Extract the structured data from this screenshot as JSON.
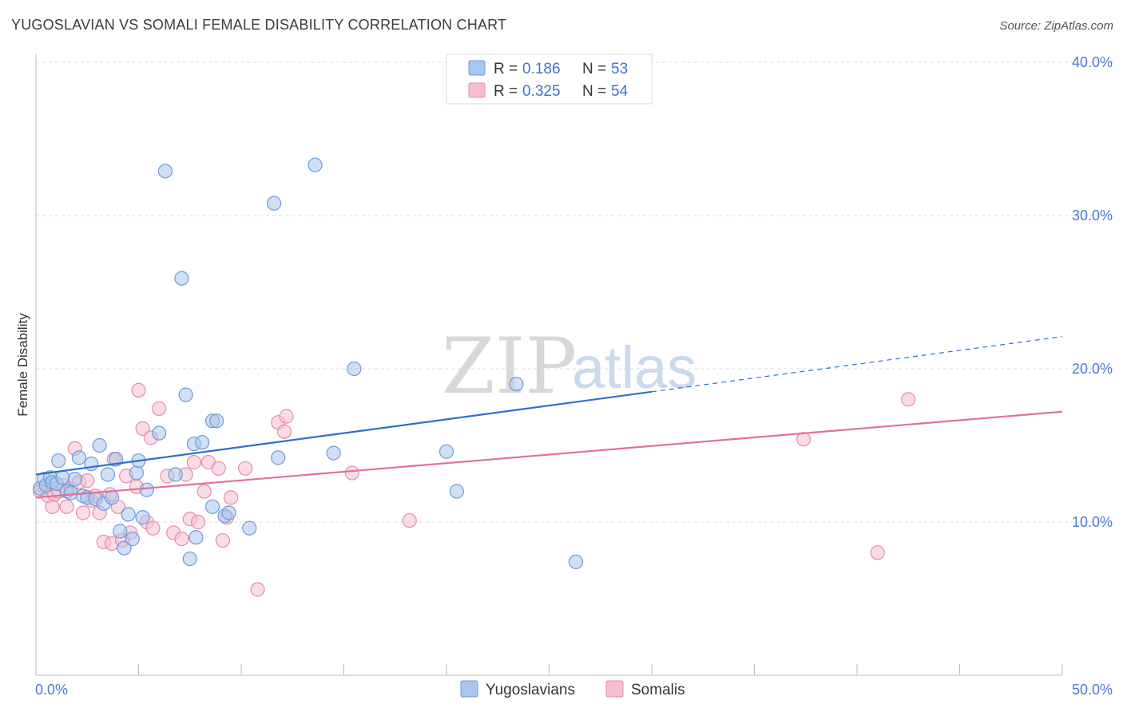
{
  "title": "YUGOSLAVIAN VS SOMALI FEMALE DISABILITY CORRELATION CHART",
  "source": "Source: ZipAtlas.com",
  "watermark": {
    "zip": "ZIP",
    "atlas": "atlas"
  },
  "legend": {
    "r_label": "R =",
    "n_label": "N =",
    "rows": [
      {
        "r": "0.186",
        "n": "53"
      },
      {
        "r": "0.325",
        "n": "54"
      }
    ]
  },
  "colors": {
    "yugo_fill": "#a9c6ef",
    "yugo_stroke": "#6f9bd8",
    "yugo_line": "#2f6fcf",
    "somali_fill": "#f6bfd0",
    "somali_stroke": "#e98aa8",
    "somali_line": "#e0709a"
  },
  "chart_data": {
    "type": "scatter",
    "title": "YUGOSLAVIAN VS SOMALI FEMALE DISABILITY CORRELATION CHART",
    "xlabel": "",
    "ylabel": "Female Disability",
    "xlim": [
      0,
      50
    ],
    "ylim": [
      0,
      41
    ],
    "x_tick_labels": [
      "0.0%",
      "50.0%"
    ],
    "y_ticks": [
      10,
      20,
      30,
      40
    ],
    "y_tick_labels": [
      "10.0%",
      "20.0%",
      "30.0%",
      "40.0%"
    ],
    "series": [
      {
        "name": "Yugoslavians",
        "r": 0.186,
        "n": 53,
        "trend": {
          "x0": 0,
          "y0": 13.1,
          "x1": 30,
          "y1": 18.5,
          "dashed_to_x": 50,
          "dashed_to_y": 22.1
        },
        "points": [
          [
            0.2,
            12.2
          ],
          [
            0.4,
            12.8
          ],
          [
            0.5,
            12.4
          ],
          [
            0.7,
            12.9
          ],
          [
            0.8,
            12.6
          ],
          [
            1.0,
            12.5
          ],
          [
            1.1,
            14.0
          ],
          [
            1.3,
            12.9
          ],
          [
            1.5,
            12.0
          ],
          [
            1.7,
            11.9
          ],
          [
            1.9,
            12.8
          ],
          [
            2.1,
            14.2
          ],
          [
            2.3,
            11.7
          ],
          [
            2.5,
            11.6
          ],
          [
            2.7,
            13.8
          ],
          [
            2.9,
            11.5
          ],
          [
            3.1,
            15.0
          ],
          [
            3.3,
            11.2
          ],
          [
            3.5,
            13.1
          ],
          [
            3.7,
            11.6
          ],
          [
            3.9,
            14.1
          ],
          [
            4.1,
            9.4
          ],
          [
            4.3,
            8.3
          ],
          [
            4.5,
            10.5
          ],
          [
            4.7,
            8.9
          ],
          [
            4.9,
            13.2
          ],
          [
            5.0,
            14.0
          ],
          [
            5.2,
            10.3
          ],
          [
            5.4,
            12.1
          ],
          [
            6.0,
            15.8
          ],
          [
            6.3,
            32.9
          ],
          [
            6.8,
            13.1
          ],
          [
            7.1,
            25.9
          ],
          [
            7.3,
            18.3
          ],
          [
            7.5,
            7.6
          ],
          [
            7.7,
            15.1
          ],
          [
            7.8,
            9.0
          ],
          [
            8.1,
            15.2
          ],
          [
            8.6,
            16.6
          ],
          [
            8.6,
            11.0
          ],
          [
            8.8,
            16.6
          ],
          [
            9.2,
            10.4
          ],
          [
            9.4,
            10.6
          ],
          [
            10.4,
            9.6
          ],
          [
            11.6,
            30.8
          ],
          [
            11.8,
            14.2
          ],
          [
            13.6,
            33.3
          ],
          [
            14.5,
            14.5
          ],
          [
            15.5,
            20.0
          ],
          [
            20.0,
            14.6
          ],
          [
            20.5,
            12.0
          ],
          [
            23.4,
            19.0
          ],
          [
            26.3,
            7.4
          ]
        ]
      },
      {
        "name": "Somalis",
        "r": 0.325,
        "n": 54,
        "trend": {
          "x0": 0,
          "y0": 11.6,
          "x1": 50,
          "y1": 17.2
        },
        "points": [
          [
            0.2,
            12.0
          ],
          [
            0.4,
            12.3
          ],
          [
            0.6,
            11.7
          ],
          [
            0.8,
            11.0
          ],
          [
            0.9,
            11.8
          ],
          [
            1.1,
            12.0
          ],
          [
            1.3,
            12.4
          ],
          [
            1.5,
            11.0
          ],
          [
            1.7,
            12.2
          ],
          [
            1.9,
            14.8
          ],
          [
            2.1,
            12.6
          ],
          [
            2.3,
            10.6
          ],
          [
            2.5,
            12.7
          ],
          [
            2.7,
            11.4
          ],
          [
            2.9,
            11.7
          ],
          [
            3.1,
            10.6
          ],
          [
            3.3,
            8.7
          ],
          [
            3.6,
            11.8
          ],
          [
            3.7,
            8.6
          ],
          [
            3.8,
            14.1
          ],
          [
            4.0,
            11.0
          ],
          [
            4.2,
            8.8
          ],
          [
            4.4,
            13.0
          ],
          [
            4.6,
            9.3
          ],
          [
            4.9,
            12.3
          ],
          [
            5.0,
            18.6
          ],
          [
            5.2,
            16.1
          ],
          [
            5.4,
            10.0
          ],
          [
            5.6,
            15.5
          ],
          [
            5.7,
            9.6
          ],
          [
            6.0,
            17.4
          ],
          [
            6.4,
            13.0
          ],
          [
            6.7,
            9.3
          ],
          [
            7.1,
            8.9
          ],
          [
            7.3,
            13.1
          ],
          [
            7.5,
            10.2
          ],
          [
            7.7,
            13.9
          ],
          [
            7.9,
            10.0
          ],
          [
            8.2,
            12.0
          ],
          [
            8.4,
            13.9
          ],
          [
            8.9,
            13.5
          ],
          [
            9.1,
            8.8
          ],
          [
            9.3,
            10.3
          ],
          [
            9.5,
            11.6
          ],
          [
            10.2,
            13.5
          ],
          [
            10.8,
            5.6
          ],
          [
            11.8,
            16.5
          ],
          [
            12.1,
            15.9
          ],
          [
            12.2,
            16.9
          ],
          [
            15.4,
            13.2
          ],
          [
            18.2,
            10.1
          ],
          [
            37.4,
            15.4
          ],
          [
            42.5,
            18.0
          ],
          [
            41.0,
            8.0
          ]
        ]
      }
    ]
  },
  "bottom_legend": {
    "yugoslavians": "Yugoslavians",
    "somalis": "Somalis"
  }
}
